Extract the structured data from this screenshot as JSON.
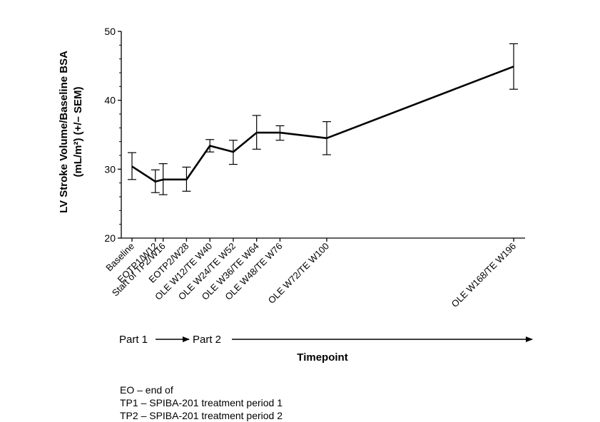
{
  "chart_data": {
    "type": "line",
    "title": "",
    "ylabel_lines": [
      "LV Stroke Volume/Baseline BSA",
      "(mL/m²) (+/– SEM)"
    ],
    "xlabel": "Timepoint",
    "ylim": [
      20,
      50
    ],
    "yticks": [
      20,
      30,
      40,
      50
    ],
    "categories": [
      "Baseline",
      "EOTP1/W12",
      "Start of TP2/W16",
      "EOTP2/W28",
      "OLE W12/TE W40",
      "OLE W24/TE W52",
      "OLE W36/TE W64",
      "OLE W48/TE W76",
      "OLE W72/TE W100",
      "OLE W168/TE W196"
    ],
    "x": [
      0,
      12,
      16,
      28,
      40,
      52,
      64,
      76,
      100,
      196
    ],
    "series": [
      {
        "values": [
          30.4,
          28.2,
          28.5,
          28.5,
          33.4,
          32.5,
          35.3,
          35.3,
          34.5,
          44.9
        ],
        "error_low": [
          28.5,
          26.6,
          26.3,
          26.8,
          32.5,
          30.7,
          32.9,
          34.2,
          32.1,
          41.6
        ],
        "error_high": [
          32.4,
          29.9,
          30.8,
          30.3,
          34.3,
          34.2,
          37.8,
          36.3,
          36.9,
          48.2
        ]
      }
    ],
    "grid": false,
    "legend": "none",
    "parts": {
      "part1": "Part 1",
      "part2": "Part 2"
    }
  },
  "footnotes": [
    "EO – end of",
    "TP1 – SPIBA-201 treatment period 1",
    "TP2 – SPIBA-201 treatment period 2"
  ]
}
